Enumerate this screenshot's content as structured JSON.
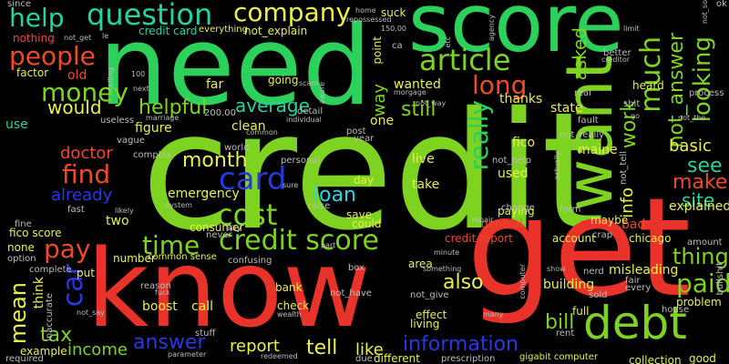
{
  "palette": {
    "background": "#000000",
    "red": "#e8322a",
    "lime": "#7ed321",
    "green": "#2bd15a",
    "teal": "#24d3a0",
    "blue": "#2a38e0",
    "cyan": "#2ad6e0",
    "yellow": "#e9f04a",
    "orange": "#ee4a2a",
    "gray": "#bdbdbd"
  },
  "words": [
    "credit",
    "know",
    "get",
    "need",
    "score",
    "want",
    "debt",
    "card",
    "credit score",
    "cost",
    "time",
    "article",
    "company",
    "question",
    "help",
    "people",
    "money",
    "much",
    "not_answer",
    "looking",
    "long",
    "really",
    "find",
    "pay",
    "car",
    "mean",
    "tax",
    "paid",
    "information",
    "answer",
    "report",
    "tell",
    "still",
    "thing",
    "make",
    "see",
    "basic",
    "loan",
    "month",
    "already",
    "doctor",
    "helpful",
    "average",
    "would",
    "way",
    "work",
    "also",
    "bill",
    "income",
    "like",
    "site",
    "info",
    "asked",
    "wanted",
    "thanks",
    "fico",
    "state",
    "used",
    "take",
    "live",
    "emergency",
    "consumer",
    "credit report",
    "account",
    "building",
    "misleading",
    "paying",
    "general",
    "save",
    "could",
    "raise",
    "two",
    "figure",
    "clean",
    "detail",
    "going",
    "far",
    "old",
    "factor",
    "use",
    "nothing",
    "since",
    "not_explain",
    "everything",
    "credit card",
    "suck",
    "repossessed",
    "150.00",
    "point",
    "ca",
    "etc",
    "agency",
    "limit",
    "better",
    "creditor",
    "heard",
    "process",
    "real",
    "not_way",
    "fault",
    "shit",
    "not_really",
    "not_the",
    "maine",
    "explained",
    "bad",
    "maybe",
    "form",
    "change",
    "repair",
    "chicago",
    "amount",
    "fico score",
    "none",
    "option",
    "fine",
    "complete",
    "think",
    "put",
    "number",
    "common sense",
    "reason",
    "fuck",
    "boost",
    "call",
    "bank",
    "check",
    "effect",
    "not_give",
    "living",
    "full",
    "nerd",
    "sold",
    "fair",
    "problem",
    "house",
    "good",
    "collection",
    "rent",
    "prescription",
    "gigabit computer",
    "different",
    "redeemed",
    "due",
    "parameter",
    "stuff",
    "example",
    "required",
    "inaccurate",
    "not_say",
    "200.00",
    "vague",
    "complex",
    "useless",
    "marriage",
    "individual",
    "scam",
    "aware",
    "morgage",
    "year",
    "post",
    "world",
    "personal",
    "sure",
    "day",
    "system",
    "likely",
    "fast",
    "never",
    "say",
    "part",
    "confusing",
    "box",
    "area",
    "something",
    "minute",
    "actually",
    "not_help",
    "many",
    "computer",
    "show",
    "crap",
    "every",
    "bullshit",
    "not_tell",
    "next",
    "telling",
    "100",
    "common",
    "home",
    "not_get",
    "le",
    "go",
    "ok",
    "wealth",
    "not_have",
    "one",
    "not_so"
  ]
}
